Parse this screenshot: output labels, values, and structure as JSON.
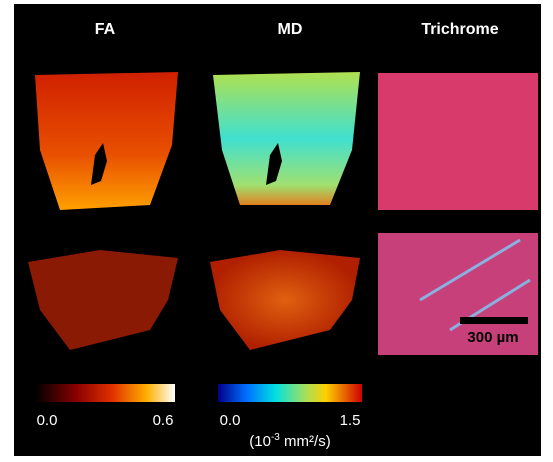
{
  "columns": {
    "fa": {
      "title": "FA",
      "scale_min": "0.0",
      "scale_max": "0.6"
    },
    "md": {
      "title": "MD",
      "scale_min": "0.0",
      "scale_max": "1.5",
      "units": {
        "prefix": "(10",
        "exponent": "-3",
        "suffix": " mm²/s)"
      }
    },
    "trichrome": {
      "title": "Trichrome",
      "scale_bar": "300 µm"
    }
  }
}
